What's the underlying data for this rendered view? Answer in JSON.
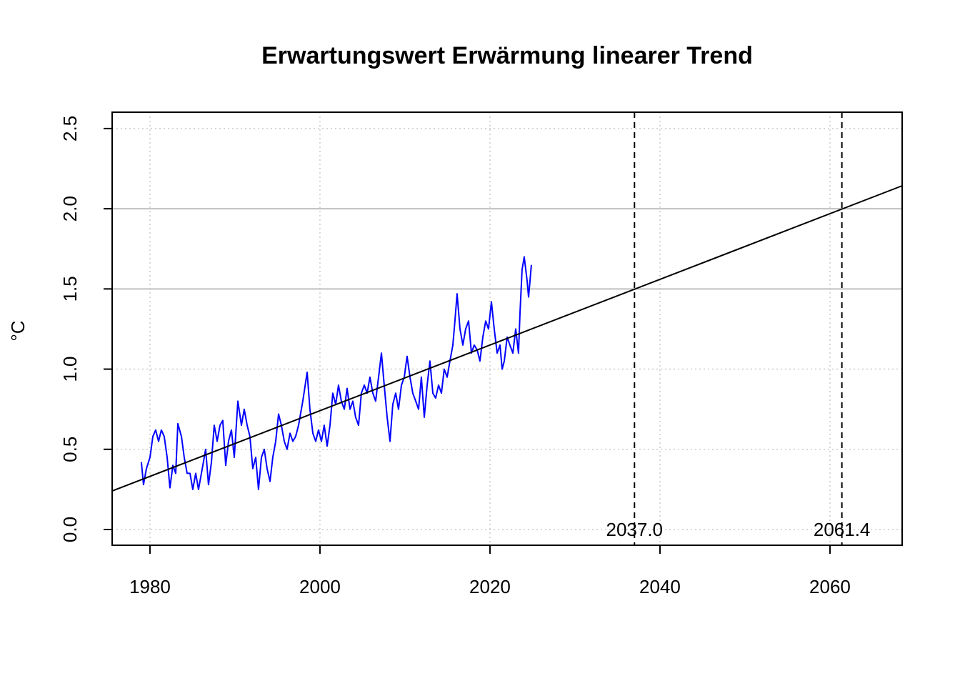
{
  "chart_data": {
    "type": "line",
    "title": "Erwartungswert Erwärmung linearer Trend",
    "ylabel": "°C",
    "xlim": [
      1975.55,
      2068.49
    ],
    "ylim": [
      -0.098,
      2.602
    ],
    "xticks": [
      1980,
      2000,
      2020,
      2040,
      2060
    ],
    "yticks": [
      {
        "value": 0,
        "label": "0.0"
      },
      {
        "value": 0.5,
        "label": "0.5"
      },
      {
        "value": 1,
        "label": "1.0"
      },
      {
        "value": 1.5,
        "label": "1.5"
      },
      {
        "value": 2,
        "label": "2.0"
      },
      {
        "value": 2.5,
        "label": "2.5"
      }
    ],
    "grid": true,
    "hlines": [
      1.5,
      2.0
    ],
    "vlines": [
      {
        "value": 2037,
        "label": "2037.0"
      },
      {
        "value": 2061.4,
        "label": "2061.4"
      }
    ],
    "trend": {
      "color": "#000000",
      "x": [
        1975.55,
        2068.49
      ],
      "values": [
        0.24,
        2.143
      ]
    },
    "series": [
      {
        "color": "#0000ff",
        "x": [
          1978.99,
          1979.24,
          1979.58,
          1980.0,
          1980.34,
          1980.67,
          1981.01,
          1981.34,
          1981.68,
          1982.02,
          1982.35,
          1982.69,
          1983.03,
          1983.28,
          1983.7,
          1984.03,
          1984.37,
          1984.71,
          1985.04,
          1985.38,
          1985.71,
          1986.22,
          1986.55,
          1986.89,
          1987.23,
          1987.56,
          1987.9,
          1988.24,
          1988.57,
          1988.91,
          1989.24,
          1989.58,
          1989.92,
          1990.34,
          1990.76,
          1991.09,
          1991.43,
          1991.76,
          1992.1,
          1992.44,
          1992.77,
          1993.11,
          1993.45,
          1993.78,
          1994.12,
          1994.45,
          1994.79,
          1995.13,
          1995.46,
          1995.8,
          1996.13,
          1996.47,
          1996.81,
          1997.14,
          1997.48,
          1997.98,
          1998.49,
          1998.82,
          1999.16,
          1999.5,
          1999.83,
          2000.17,
          2000.5,
          2000.84,
          2001.18,
          2001.51,
          2001.85,
          2002.18,
          2002.52,
          2002.86,
          2003.19,
          2003.53,
          2003.87,
          2004.2,
          2004.54,
          2004.87,
          2005.21,
          2005.55,
          2005.88,
          2006.22,
          2006.55,
          2006.89,
          2007.23,
          2007.56,
          2007.9,
          2008.24,
          2008.57,
          2008.91,
          2009.24,
          2009.58,
          2009.92,
          2010.25,
          2010.59,
          2010.92,
          2011.26,
          2011.6,
          2011.93,
          2012.27,
          2012.61,
          2012.94,
          2013.28,
          2013.61,
          2013.95,
          2014.29,
          2014.62,
          2014.96,
          2015.29,
          2015.63,
          2015.88,
          2016.13,
          2016.47,
          2016.81,
          2017.14,
          2017.48,
          2017.82,
          2018.15,
          2018.49,
          2018.82,
          2019.16,
          2019.5,
          2019.83,
          2020.17,
          2020.5,
          2020.84,
          2021.18,
          2021.43,
          2021.68,
          2022.02,
          2022.35,
          2022.69,
          2023.03,
          2023.36,
          2023.53,
          2023.78,
          2024.03,
          2024.37,
          2024.54,
          2024.71,
          2024.87
        ],
        "values": [
          0.42,
          0.28,
          0.38,
          0.45,
          0.58,
          0.62,
          0.55,
          0.62,
          0.58,
          0.45,
          0.26,
          0.4,
          0.35,
          0.66,
          0.58,
          0.45,
          0.35,
          0.35,
          0.25,
          0.35,
          0.25,
          0.4,
          0.5,
          0.28,
          0.42,
          0.65,
          0.55,
          0.65,
          0.68,
          0.4,
          0.55,
          0.62,
          0.45,
          0.8,
          0.65,
          0.75,
          0.65,
          0.58,
          0.38,
          0.45,
          0.25,
          0.45,
          0.5,
          0.38,
          0.3,
          0.45,
          0.55,
          0.72,
          0.65,
          0.55,
          0.5,
          0.6,
          0.55,
          0.58,
          0.65,
          0.8,
          0.98,
          0.75,
          0.6,
          0.55,
          0.62,
          0.55,
          0.65,
          0.52,
          0.65,
          0.85,
          0.78,
          0.9,
          0.8,
          0.75,
          0.88,
          0.75,
          0.8,
          0.7,
          0.65,
          0.85,
          0.9,
          0.85,
          0.95,
          0.85,
          0.8,
          0.95,
          1.1,
          0.9,
          0.7,
          0.55,
          0.78,
          0.85,
          0.75,
          0.9,
          0.95,
          1.08,
          0.95,
          0.85,
          0.8,
          0.75,
          0.95,
          0.7,
          0.9,
          1.05,
          0.85,
          0.82,
          0.9,
          0.85,
          1.0,
          0.95,
          1.05,
          1.15,
          1.3,
          1.47,
          1.25,
          1.15,
          1.25,
          1.3,
          1.1,
          1.15,
          1.12,
          1.05,
          1.2,
          1.3,
          1.25,
          1.42,
          1.25,
          1.1,
          1.15,
          1.0,
          1.05,
          1.2,
          1.15,
          1.1,
          1.25,
          1.1,
          1.35,
          1.62,
          1.7,
          1.55,
          1.45,
          1.55,
          1.65
        ]
      }
    ]
  }
}
